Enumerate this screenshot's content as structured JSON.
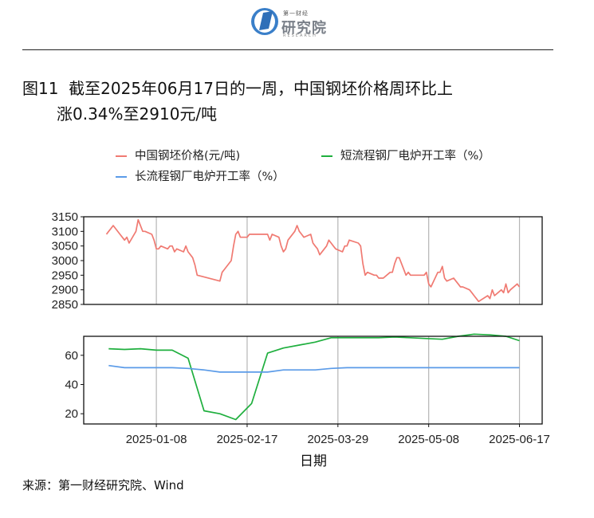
{
  "logo": {
    "top_small": "第一财经",
    "name": "研究院",
    "sub": "RESEARCH"
  },
  "figure": {
    "number": "图11",
    "title_line1": "截至2025年06月17日的一周，中国钢坯价格周环比上",
    "title_line2": "涨0.34%至2910元/吨"
  },
  "legend": [
    {
      "label": "中国钢坯价格(元/吨)",
      "color": "#F07A72"
    },
    {
      "label": "短流程钢厂电炉开工率（%）",
      "color": "#1FAF3E"
    },
    {
      "label": "长流程钢厂电炉开工率（%）",
      "color": "#5B9BE8"
    }
  ],
  "source": "来源：第一财经研究院、Wind",
  "chart_data": {
    "type": "line",
    "xlabel": "日期",
    "x_ticks": [
      "2025-01-08",
      "2025-02-17",
      "2025-03-29",
      "2025-05-08",
      "2025-06-17"
    ],
    "x_range": [
      "2024-12-07",
      "2025-06-27"
    ],
    "panels": [
      {
        "ylim": [
          2850,
          3150
        ],
        "y_ticks": [
          2850,
          2900,
          2950,
          3000,
          3050,
          3100,
          3150
        ],
        "series": [
          {
            "name": "中国钢坯价格(元/吨)",
            "color": "#F07A72",
            "points": [
              [
                "2024-12-17",
                3090
              ],
              [
                "2024-12-18",
                3100
              ],
              [
                "2024-12-19",
                3110
              ],
              [
                "2024-12-20",
                3120
              ],
              [
                "2024-12-23",
                3090
              ],
              [
                "2024-12-24",
                3080
              ],
              [
                "2024-12-25",
                3070
              ],
              [
                "2024-12-26",
                3080
              ],
              [
                "2024-12-27",
                3060
              ],
              [
                "2024-12-30",
                3100
              ],
              [
                "2024-12-31",
                3140
              ],
              [
                "2025-01-02",
                3100
              ],
              [
                "2025-01-03",
                3100
              ],
              [
                "2025-01-06",
                3090
              ],
              [
                "2025-01-07",
                3070
              ],
              [
                "2025-01-08",
                3040
              ],
              [
                "2025-01-09",
                3040
              ],
              [
                "2025-01-10",
                3050
              ],
              [
                "2025-01-13",
                3040
              ],
              [
                "2025-01-14",
                3050
              ],
              [
                "2025-01-15",
                3050
              ],
              [
                "2025-01-16",
                3030
              ],
              [
                "2025-01-17",
                3040
              ],
              [
                "2025-01-20",
                3030
              ],
              [
                "2025-01-21",
                3050
              ],
              [
                "2025-01-22",
                3030
              ],
              [
                "2025-01-23",
                3020
              ],
              [
                "2025-01-24",
                3010
              ],
              [
                "2025-01-25",
                2985
              ],
              [
                "2025-01-26",
                2950
              ],
              [
                "2025-02-05",
                2930
              ],
              [
                "2025-02-06",
                2960
              ],
              [
                "2025-02-07",
                2970
              ],
              [
                "2025-02-10",
                3000
              ],
              [
                "2025-02-11",
                3050
              ],
              [
                "2025-02-12",
                3090
              ],
              [
                "2025-02-13",
                3100
              ],
              [
                "2025-02-14",
                3080
              ],
              [
                "2025-02-17",
                3080
              ],
              [
                "2025-02-18",
                3090
              ],
              [
                "2025-02-19",
                3090
              ],
              [
                "2025-02-20",
                3090
              ],
              [
                "2025-02-21",
                3090
              ],
              [
                "2025-02-24",
                3090
              ],
              [
                "2025-02-25",
                3090
              ],
              [
                "2025-02-26",
                3090
              ],
              [
                "2025-02-27",
                3070
              ],
              [
                "2025-02-28",
                3090
              ],
              [
                "2025-03-03",
                3080
              ],
              [
                "2025-03-04",
                3050
              ],
              [
                "2025-03-05",
                3030
              ],
              [
                "2025-03-06",
                3040
              ],
              [
                "2025-03-07",
                3070
              ],
              [
                "2025-03-10",
                3100
              ],
              [
                "2025-03-11",
                3120
              ],
              [
                "2025-03-12",
                3100
              ],
              [
                "2025-03-13",
                3090
              ],
              [
                "2025-03-14",
                3080
              ],
              [
                "2025-03-17",
                3090
              ],
              [
                "2025-03-18",
                3060
              ],
              [
                "2025-03-19",
                3050
              ],
              [
                "2025-03-20",
                3040
              ],
              [
                "2025-03-21",
                3020
              ],
              [
                "2025-03-24",
                3050
              ],
              [
                "2025-03-25",
                3070
              ],
              [
                "2025-03-26",
                3060
              ],
              [
                "2025-03-27",
                3050
              ],
              [
                "2025-03-28",
                3040
              ],
              [
                "2025-03-31",
                3030
              ],
              [
                "2025-04-01",
                3050
              ],
              [
                "2025-04-02",
                3050
              ],
              [
                "2025-04-03",
                3070
              ],
              [
                "2025-04-07",
                3060
              ],
              [
                "2025-04-08",
                3050
              ],
              [
                "2025-04-09",
                2990
              ],
              [
                "2025-04-10",
                2950
              ],
              [
                "2025-04-11",
                2960
              ],
              [
                "2025-04-14",
                2950
              ],
              [
                "2025-04-15",
                2950
              ],
              [
                "2025-04-16",
                2940
              ],
              [
                "2025-04-17",
                2940
              ],
              [
                "2025-04-18",
                2940
              ],
              [
                "2025-04-21",
                2960
              ],
              [
                "2025-04-22",
                2960
              ],
              [
                "2025-04-23",
                2990
              ],
              [
                "2025-04-24",
                3010
              ],
              [
                "2025-04-25",
                3010
              ],
              [
                "2025-04-28",
                2950
              ],
              [
                "2025-04-29",
                2960
              ],
              [
                "2025-04-30",
                2950
              ],
              [
                "2025-05-06",
                2950
              ],
              [
                "2025-05-07",
                2960
              ],
              [
                "2025-05-08",
                2920
              ],
              [
                "2025-05-09",
                2910
              ],
              [
                "2025-05-12",
                2960
              ],
              [
                "2025-05-13",
                2960
              ],
              [
                "2025-05-14",
                2980
              ],
              [
                "2025-05-15",
                2940
              ],
              [
                "2025-05-16",
                2930
              ],
              [
                "2025-05-19",
                2940
              ],
              [
                "2025-05-20",
                2930
              ],
              [
                "2025-05-21",
                2920
              ],
              [
                "2025-05-22",
                2910
              ],
              [
                "2025-05-23",
                2910
              ],
              [
                "2025-05-26",
                2900
              ],
              [
                "2025-05-27",
                2890
              ],
              [
                "2025-05-28",
                2880
              ],
              [
                "2025-05-29",
                2870
              ],
              [
                "2025-05-30",
                2860
              ],
              [
                "2025-06-03",
                2880
              ],
              [
                "2025-06-04",
                2870
              ],
              [
                "2025-06-05",
                2900
              ],
              [
                "2025-06-06",
                2880
              ],
              [
                "2025-06-09",
                2900
              ],
              [
                "2025-06-10",
                2890
              ],
              [
                "2025-06-11",
                2920
              ],
              [
                "2025-06-12",
                2890
              ],
              [
                "2025-06-13",
                2900
              ],
              [
                "2025-06-16",
                2920
              ],
              [
                "2025-06-17",
                2910
              ]
            ]
          }
        ]
      },
      {
        "ylim": [
          13,
          73
        ],
        "y_ticks": [
          20,
          40,
          60
        ],
        "series": [
          {
            "name": "短流程钢厂电炉开工率（%）",
            "color": "#1FAF3E",
            "points": [
              [
                "2024-12-18",
                64.5
              ],
              [
                "2024-12-25",
                64.0
              ],
              [
                "2025-01-01",
                64.5
              ],
              [
                "2025-01-08",
                63.5
              ],
              [
                "2025-01-15",
                63.5
              ],
              [
                "2025-01-22",
                58.0
              ],
              [
                "2025-01-29",
                22.0
              ],
              [
                "2025-02-05",
                20.0
              ],
              [
                "2025-02-12",
                16.0
              ],
              [
                "2025-02-19",
                27.0
              ],
              [
                "2025-02-26",
                61.5
              ],
              [
                "2025-03-05",
                65.0
              ],
              [
                "2025-03-12",
                67.0
              ],
              [
                "2025-03-19",
                69.0
              ],
              [
                "2025-03-26",
                72.0
              ],
              [
                "2025-04-02",
                72.0
              ],
              [
                "2025-04-09",
                72.0
              ],
              [
                "2025-04-16",
                72.0
              ],
              [
                "2025-04-23",
                72.5
              ],
              [
                "2025-04-30",
                72.0
              ],
              [
                "2025-05-07",
                71.5
              ],
              [
                "2025-05-14",
                71.0
              ],
              [
                "2025-05-21",
                73.0
              ],
              [
                "2025-05-28",
                74.5
              ],
              [
                "2025-06-04",
                74.0
              ],
              [
                "2025-06-11",
                73.0
              ],
              [
                "2025-06-17",
                70.0
              ]
            ]
          },
          {
            "name": "长流程钢厂电炉开工率（%）",
            "color": "#5B9BE8",
            "points": [
              [
                "2024-12-18",
                53.0
              ],
              [
                "2024-12-25",
                51.5
              ],
              [
                "2025-01-01",
                51.5
              ],
              [
                "2025-01-08",
                51.5
              ],
              [
                "2025-01-15",
                51.5
              ],
              [
                "2025-01-22",
                51.0
              ],
              [
                "2025-01-29",
                50.0
              ],
              [
                "2025-02-05",
                48.5
              ],
              [
                "2025-02-12",
                48.5
              ],
              [
                "2025-02-19",
                48.5
              ],
              [
                "2025-02-26",
                48.5
              ],
              [
                "2025-03-05",
                50.0
              ],
              [
                "2025-03-12",
                50.0
              ],
              [
                "2025-03-19",
                50.0
              ],
              [
                "2025-03-26",
                51.0
              ],
              [
                "2025-04-02",
                51.5
              ],
              [
                "2025-04-09",
                51.5
              ],
              [
                "2025-04-16",
                51.5
              ],
              [
                "2025-04-23",
                51.5
              ],
              [
                "2025-04-30",
                51.5
              ],
              [
                "2025-05-07",
                51.5
              ],
              [
                "2025-05-14",
                51.5
              ],
              [
                "2025-05-21",
                51.5
              ],
              [
                "2025-05-28",
                51.5
              ],
              [
                "2025-06-04",
                51.5
              ],
              [
                "2025-06-11",
                51.5
              ],
              [
                "2025-06-17",
                51.5
              ]
            ]
          }
        ]
      }
    ]
  }
}
